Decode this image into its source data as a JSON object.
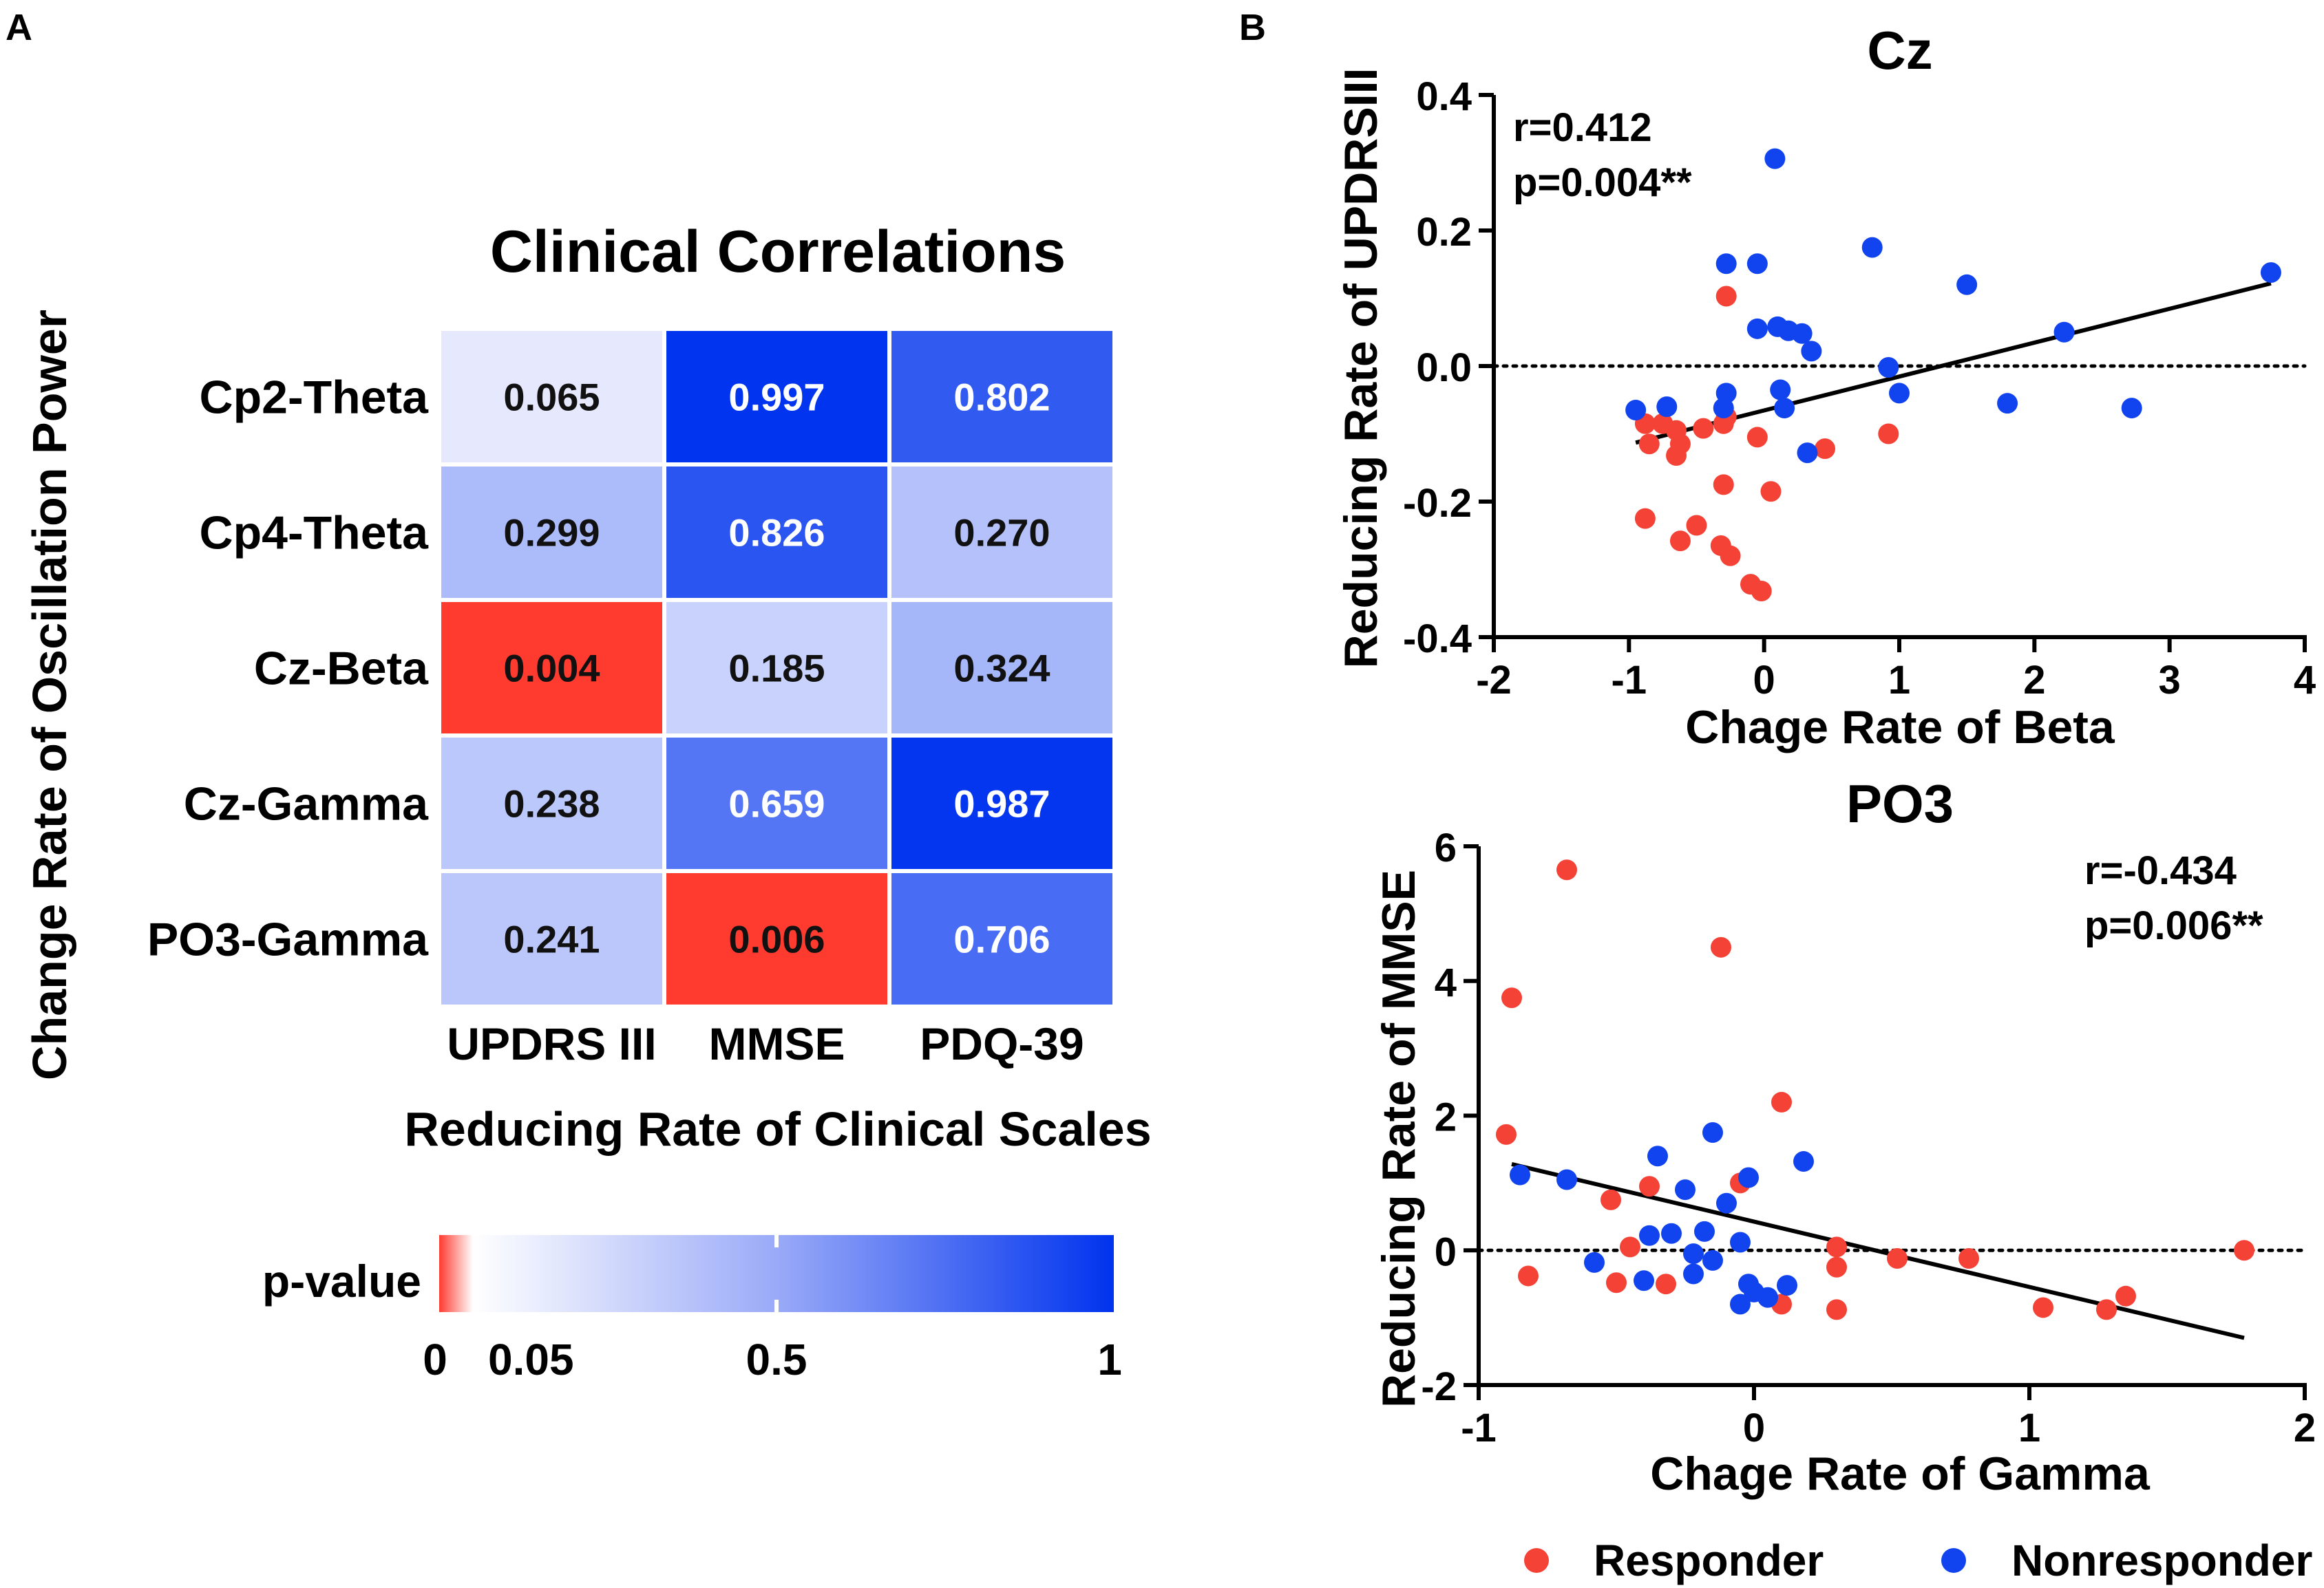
{
  "panel_labels": {
    "a": "A",
    "b": "B"
  },
  "colors": {
    "red": "#f44336",
    "blue": "#1144ee",
    "heat_low": "#ff3b30",
    "heat_mid": "#ffffff",
    "heat_high": "#0033ee"
  },
  "chart_data": [
    {
      "type": "heatmap",
      "title": "Clinical Correlations",
      "ylabel": "Change Rate of Oscillation Power",
      "xlabel": "Reducing Rate of Clinical Scales",
      "rows": [
        "Cp2-Theta",
        "Cp4-Theta",
        "Cz-Beta",
        "Cz-Gamma",
        "PO3-Gamma"
      ],
      "columns": [
        "UPDRS III",
        "MMSE",
        "PDQ-39"
      ],
      "values": [
        [
          "0.065",
          "0.997",
          "0.802"
        ],
        [
          "0.299",
          "0.826",
          "0.270"
        ],
        [
          "0.004",
          "0.185",
          "0.324"
        ],
        [
          "0.238",
          "0.659",
          "0.987"
        ],
        [
          "0.241",
          "0.006",
          "0.706"
        ]
      ],
      "colorbar": {
        "label": "p-value",
        "range": [
          0,
          1
        ],
        "significance_cutoff": 0.05,
        "ticks": [
          {
            "value": 0,
            "label": "0"
          },
          {
            "value": 0.05,
            "label": "0.05"
          },
          {
            "value": 0.5,
            "label": "0.5"
          },
          {
            "value": 1,
            "label": "1"
          }
        ]
      }
    },
    {
      "type": "scatter",
      "title": "Cz",
      "xlabel": "Chage Rate of Beta",
      "ylabel": "Reducing Rate of UPDRSIII",
      "xlim": [
        -2,
        4
      ],
      "ylim": [
        -0.4,
        0.4
      ],
      "xticks": [
        -2,
        -1,
        0,
        1,
        2,
        3,
        4
      ],
      "yticks": [
        -0.4,
        -0.2,
        0.0,
        0.2,
        0.4
      ],
      "ytick_labels": [
        "-0.4",
        "-0.2",
        "0.0",
        "0.2",
        "0.4"
      ],
      "stats": {
        "r": "r=0.412",
        "p": "p=0.004**"
      },
      "fit_line": {
        "x": [
          -0.95,
          3.75
        ],
        "y": [
          -0.113,
          0.122
        ]
      },
      "zero_line": 0,
      "series": [
        {
          "name": "Responder",
          "points": [
            [
              -0.28,
              0.103
            ],
            [
              -0.28,
              -0.075
            ],
            [
              -0.88,
              -0.085
            ],
            [
              -0.75,
              -0.085
            ],
            [
              -0.85,
              -0.115
            ],
            [
              -0.65,
              -0.095
            ],
            [
              -0.62,
              -0.115
            ],
            [
              -0.65,
              -0.132
            ],
            [
              -0.45,
              -0.092
            ],
            [
              -0.3,
              -0.085
            ],
            [
              -0.05,
              -0.105
            ],
            [
              0.05,
              -0.185
            ],
            [
              0.45,
              -0.122
            ],
            [
              0.92,
              -0.1
            ],
            [
              -0.3,
              -0.175
            ],
            [
              -0.88,
              -0.225
            ],
            [
              -0.5,
              -0.235
            ],
            [
              -0.62,
              -0.258
            ],
            [
              -0.32,
              -0.265
            ],
            [
              -0.25,
              -0.28
            ],
            [
              -0.1,
              -0.322
            ],
            [
              -0.02,
              -0.332
            ]
          ]
        },
        {
          "name": "Nonresponder",
          "points": [
            [
              0.08,
              0.306
            ],
            [
              -0.28,
              0.151
            ],
            [
              -0.05,
              0.151
            ],
            [
              0.8,
              0.175
            ],
            [
              1.5,
              0.12
            ],
            [
              3.75,
              0.138
            ],
            [
              0.1,
              0.058
            ],
            [
              0.18,
              0.052
            ],
            [
              0.28,
              0.048
            ],
            [
              -0.05,
              0.055
            ],
            [
              2.22,
              0.05
            ],
            [
              0.35,
              0.022
            ],
            [
              0.92,
              -0.002
            ],
            [
              -0.28,
              -0.04
            ],
            [
              1.0,
              -0.04
            ],
            [
              0.12,
              -0.035
            ],
            [
              0.15,
              -0.062
            ],
            [
              -0.95,
              -0.065
            ],
            [
              -0.72,
              -0.06
            ],
            [
              -0.3,
              -0.062
            ],
            [
              1.8,
              -0.055
            ],
            [
              2.72,
              -0.062
            ],
            [
              0.32,
              -0.128
            ]
          ]
        }
      ]
    },
    {
      "type": "scatter",
      "title": "PO3",
      "xlabel": "Chage Rate of Gamma",
      "ylabel": "Reducing Rate of MMSE",
      "xlim": [
        -1,
        2
      ],
      "ylim": [
        -2,
        6
      ],
      "xticks": [
        -1,
        0,
        1,
        2
      ],
      "yticks": [
        -2,
        0,
        2,
        4,
        6
      ],
      "ytick_labels": [
        "-2",
        "0",
        "2",
        "4",
        "6"
      ],
      "stats": {
        "r": "r=-0.434",
        "p": "p=0.006**"
      },
      "fit_line": {
        "x": [
          -0.88,
          1.78
        ],
        "y": [
          1.28,
          -1.3
        ]
      },
      "zero_line": 0,
      "series": [
        {
          "name": "Responder",
          "points": [
            [
              -0.88,
              3.75
            ],
            [
              -0.68,
              5.65
            ],
            [
              -0.12,
              4.5
            ],
            [
              0.1,
              2.2
            ],
            [
              -0.9,
              1.72
            ],
            [
              -0.52,
              0.75
            ],
            [
              -0.38,
              0.95
            ],
            [
              -0.05,
              1.0
            ],
            [
              -0.45,
              0.05
            ],
            [
              0.3,
              0.05
            ],
            [
              0.3,
              -0.25
            ],
            [
              0.52,
              -0.12
            ],
            [
              0.78,
              -0.12
            ],
            [
              1.78,
              0.0
            ],
            [
              -0.82,
              -0.38
            ],
            [
              -0.5,
              -0.48
            ],
            [
              -0.32,
              -0.5
            ],
            [
              0.1,
              -0.8
            ],
            [
              0.3,
              -0.88
            ],
            [
              1.05,
              -0.85
            ],
            [
              1.28,
              -0.88
            ],
            [
              1.35,
              -0.68
            ]
          ]
        },
        {
          "name": "Nonresponder",
          "points": [
            [
              -0.15,
              1.75
            ],
            [
              -0.25,
              0.9
            ],
            [
              -0.35,
              1.4
            ],
            [
              -0.85,
              1.12
            ],
            [
              -0.68,
              1.05
            ],
            [
              0.18,
              1.32
            ],
            [
              -0.02,
              1.08
            ],
            [
              -0.1,
              0.7
            ],
            [
              -0.38,
              0.22
            ],
            [
              -0.3,
              0.25
            ],
            [
              -0.18,
              0.28
            ],
            [
              -0.05,
              0.12
            ],
            [
              -0.22,
              -0.05
            ],
            [
              -0.15,
              -0.15
            ],
            [
              -0.58,
              -0.18
            ],
            [
              -0.4,
              -0.45
            ],
            [
              -0.22,
              -0.35
            ],
            [
              -0.02,
              -0.5
            ],
            [
              0.0,
              -0.62
            ],
            [
              0.05,
              -0.7
            ],
            [
              0.12,
              -0.52
            ],
            [
              -0.05,
              -0.8
            ]
          ]
        }
      ]
    }
  ],
  "legend": {
    "items": [
      "Responder",
      "Nonresponder"
    ],
    "placement": "bottom-right"
  }
}
